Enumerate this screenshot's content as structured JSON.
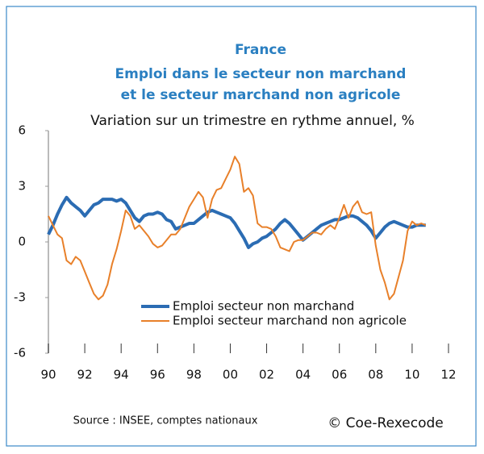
{
  "chart_data": {
    "type": "line",
    "title": "France",
    "subtitle": [
      "Emploi dans le secteur non marchand",
      "et le secteur marchand non agricole"
    ],
    "y_label": "Variation sur un trimestre en rythme annuel, %",
    "source": "Source : INSEE, comptes nationaux",
    "credit": "© Coe-Rexecode",
    "x": [
      1990,
      1990.25,
      1990.5,
      1990.75,
      1991,
      1991.25,
      1991.5,
      1991.75,
      1992,
      1992.25,
      1992.5,
      1992.75,
      1993,
      1993.25,
      1993.5,
      1993.75,
      1994,
      1994.25,
      1994.5,
      1994.75,
      1995,
      1995.25,
      1995.5,
      1995.75,
      1996,
      1996.25,
      1996.5,
      1996.75,
      1997,
      1997.25,
      1997.5,
      1997.75,
      1998,
      1998.25,
      1998.5,
      1998.75,
      1999,
      1999.25,
      1999.5,
      1999.75,
      2000,
      2000.25,
      2000.5,
      2000.75,
      2001,
      2001.25,
      2001.5,
      2001.75,
      2002,
      2002.25,
      2002.5,
      2002.75,
      2003,
      2003.25,
      2003.5,
      2003.75,
      2004,
      2004.25,
      2004.5,
      2004.75,
      2005,
      2005.25,
      2005.5,
      2005.75,
      2006,
      2006.25,
      2006.5,
      2006.75,
      2007,
      2007.25,
      2007.5,
      2007.75,
      2008,
      2008.25,
      2008.5,
      2008.75,
      2009,
      2009.25,
      2009.5,
      2009.75,
      2010,
      2010.25,
      2010.5,
      2010.75
    ],
    "series": [
      {
        "name": "Emploi secteur non marchand",
        "color": "#2b6cb3",
        "width": 4,
        "values": [
          0.4,
          0.9,
          1.5,
          2.0,
          2.4,
          2.1,
          1.9,
          1.7,
          1.4,
          1.7,
          2.0,
          2.1,
          2.3,
          2.3,
          2.3,
          2.2,
          2.3,
          2.1,
          1.7,
          1.3,
          1.1,
          1.4,
          1.5,
          1.5,
          1.6,
          1.5,
          1.2,
          1.1,
          0.7,
          0.8,
          0.9,
          1.0,
          1.0,
          1.2,
          1.4,
          1.6,
          1.7,
          1.6,
          1.5,
          1.4,
          1.3,
          1.0,
          0.6,
          0.2,
          -0.3,
          -0.1,
          0.0,
          0.2,
          0.3,
          0.5,
          0.7,
          1.0,
          1.2,
          1.0,
          0.7,
          0.4,
          0.1,
          0.3,
          0.5,
          0.7,
          0.9,
          1.0,
          1.1,
          1.2,
          1.2,
          1.3,
          1.4,
          1.4,
          1.3,
          1.1,
          0.9,
          0.6,
          0.2,
          0.5,
          0.8,
          1.0,
          1.1,
          1.0,
          0.9,
          0.8,
          0.8,
          0.9,
          0.9,
          0.9
        ]
      },
      {
        "name": "Emploi secteur marchand non agricole",
        "color": "#e8802a",
        "width": 2,
        "values": [
          1.4,
          0.9,
          0.4,
          0.2,
          -1.0,
          -1.2,
          -0.8,
          -1.0,
          -1.6,
          -2.2,
          -2.8,
          -3.1,
          -2.9,
          -2.3,
          -1.2,
          -0.4,
          0.6,
          1.7,
          1.4,
          0.7,
          0.9,
          0.6,
          0.3,
          -0.1,
          -0.3,
          -0.2,
          0.1,
          0.4,
          0.4,
          0.7,
          1.3,
          1.9,
          2.3,
          2.7,
          2.4,
          1.3,
          2.3,
          2.8,
          2.9,
          3.4,
          3.9,
          4.6,
          4.2,
          2.7,
          2.9,
          2.5,
          1.0,
          0.8,
          0.8,
          0.7,
          0.3,
          -0.3,
          -0.4,
          -0.5,
          0.0,
          0.1,
          0.1,
          0.3,
          0.5,
          0.5,
          0.4,
          0.7,
          0.9,
          0.7,
          1.3,
          2.0,
          1.3,
          1.9,
          2.2,
          1.6,
          1.5,
          1.6,
          -0.2,
          -1.5,
          -2.2,
          -3.1,
          -2.8,
          -1.9,
          -1.0,
          0.6,
          1.1,
          0.9,
          1.0,
          0.9
        ]
      }
    ],
    "xlim": [
      1990,
      2012
    ],
    "xticks": [
      {
        "value": 1990,
        "label": "90"
      },
      {
        "value": 1992,
        "label": "92"
      },
      {
        "value": 1994,
        "label": "94"
      },
      {
        "value": 1996,
        "label": "96"
      },
      {
        "value": 1998,
        "label": "98"
      },
      {
        "value": 2000,
        "label": "00"
      },
      {
        "value": 2002,
        "label": "02"
      },
      {
        "value": 2004,
        "label": "04"
      },
      {
        "value": 2006,
        "label": "06"
      },
      {
        "value": 2008,
        "label": "08"
      },
      {
        "value": 2010,
        "label": "10"
      },
      {
        "value": 2012,
        "label": "12"
      }
    ],
    "ylim": [
      -6,
      6
    ],
    "yticks": [
      6,
      3,
      0,
      -3,
      -6
    ]
  }
}
